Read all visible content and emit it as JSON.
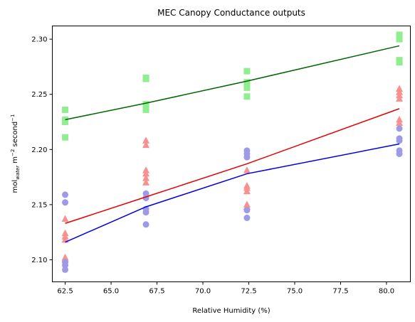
{
  "chart_data": {
    "type": "scatter",
    "title": "MEC Canopy Conductance outputs",
    "xlabel": "Relative Humidity (%)",
    "ylabel": {
      "base": "mol",
      "subscript": "water",
      "rest1": " m",
      "sup1": "−2",
      "rest2": " second",
      "sup2": "−1"
    },
    "xlim": [
      61.8,
      81.3
    ],
    "ylim": [
      2.08,
      2.312
    ],
    "xticks": [
      62.5,
      65.0,
      67.5,
      70.0,
      72.5,
      75.0,
      77.5,
      80.0
    ],
    "xtick_labels": [
      "62.5",
      "65.0",
      "67.5",
      "70.0",
      "72.5",
      "75.0",
      "77.5",
      "80.0"
    ],
    "yticks": [
      2.1,
      2.15,
      2.2,
      2.25,
      2.3
    ],
    "ytick_labels": [
      "2.10",
      "2.15",
      "2.20",
      "2.25",
      "2.30"
    ],
    "grid": false,
    "legend": "none",
    "series": [
      {
        "marker": "square",
        "color": "#90ee90",
        "line_color": "#006400",
        "points": [
          [
            62.5,
            2.236
          ],
          [
            62.5,
            2.227
          ],
          [
            62.5,
            2.225
          ],
          [
            62.5,
            2.211
          ],
          [
            66.9,
            2.265
          ],
          [
            66.9,
            2.264
          ],
          [
            66.9,
            2.241
          ],
          [
            66.9,
            2.238
          ],
          [
            66.9,
            2.236
          ],
          [
            72.4,
            2.271
          ],
          [
            72.4,
            2.261
          ],
          [
            72.4,
            2.258
          ],
          [
            72.4,
            2.256
          ],
          [
            72.4,
            2.248
          ],
          [
            80.7,
            2.304
          ],
          [
            80.7,
            2.302
          ],
          [
            80.7,
            2.3
          ],
          [
            80.7,
            2.281
          ],
          [
            80.7,
            2.279
          ]
        ],
        "trend": [
          [
            62.5,
            2.227
          ],
          [
            66.9,
            2.242
          ],
          [
            72.4,
            2.262
          ],
          [
            80.7,
            2.294
          ]
        ]
      },
      {
        "marker": "triangle",
        "color": "#f99090",
        "line_color": "#e50000",
        "points": [
          [
            62.5,
            2.137
          ],
          [
            62.5,
            2.124
          ],
          [
            62.5,
            2.121
          ],
          [
            62.5,
            2.118
          ],
          [
            62.5,
            2.102
          ],
          [
            62.5,
            2.1
          ],
          [
            66.9,
            2.208
          ],
          [
            66.9,
            2.204
          ],
          [
            66.9,
            2.181
          ],
          [
            66.9,
            2.178
          ],
          [
            66.9,
            2.174
          ],
          [
            66.9,
            2.17
          ],
          [
            72.4,
            2.181
          ],
          [
            72.4,
            2.167
          ],
          [
            72.4,
            2.165
          ],
          [
            72.4,
            2.162
          ],
          [
            72.4,
            2.15
          ],
          [
            72.4,
            2.148
          ],
          [
            80.7,
            2.255
          ],
          [
            80.7,
            2.252
          ],
          [
            80.7,
            2.249
          ],
          [
            80.7,
            2.246
          ],
          [
            80.7,
            2.227
          ],
          [
            80.7,
            2.224
          ]
        ],
        "trend": [
          [
            62.5,
            2.133
          ],
          [
            66.9,
            2.157
          ],
          [
            72.4,
            2.187
          ],
          [
            80.7,
            2.237
          ]
        ]
      },
      {
        "marker": "circle",
        "color": "#9f9ae8",
        "line_color": "#0000e0",
        "points": [
          [
            62.5,
            2.159
          ],
          [
            62.5,
            2.152
          ],
          [
            62.5,
            2.098
          ],
          [
            62.5,
            2.095
          ],
          [
            62.5,
            2.091
          ],
          [
            66.9,
            2.16
          ],
          [
            66.9,
            2.156
          ],
          [
            66.9,
            2.146
          ],
          [
            66.9,
            2.143
          ],
          [
            66.9,
            2.132
          ],
          [
            72.4,
            2.199
          ],
          [
            72.4,
            2.196
          ],
          [
            72.4,
            2.193
          ],
          [
            72.4,
            2.145
          ],
          [
            72.4,
            2.138
          ],
          [
            80.7,
            2.219
          ],
          [
            80.7,
            2.21
          ],
          [
            80.7,
            2.208
          ],
          [
            80.7,
            2.199
          ],
          [
            80.7,
            2.196
          ]
        ],
        "trend": [
          [
            62.5,
            2.116
          ],
          [
            66.9,
            2.148
          ],
          [
            72.4,
            2.178
          ],
          [
            80.7,
            2.205
          ]
        ]
      }
    ]
  }
}
